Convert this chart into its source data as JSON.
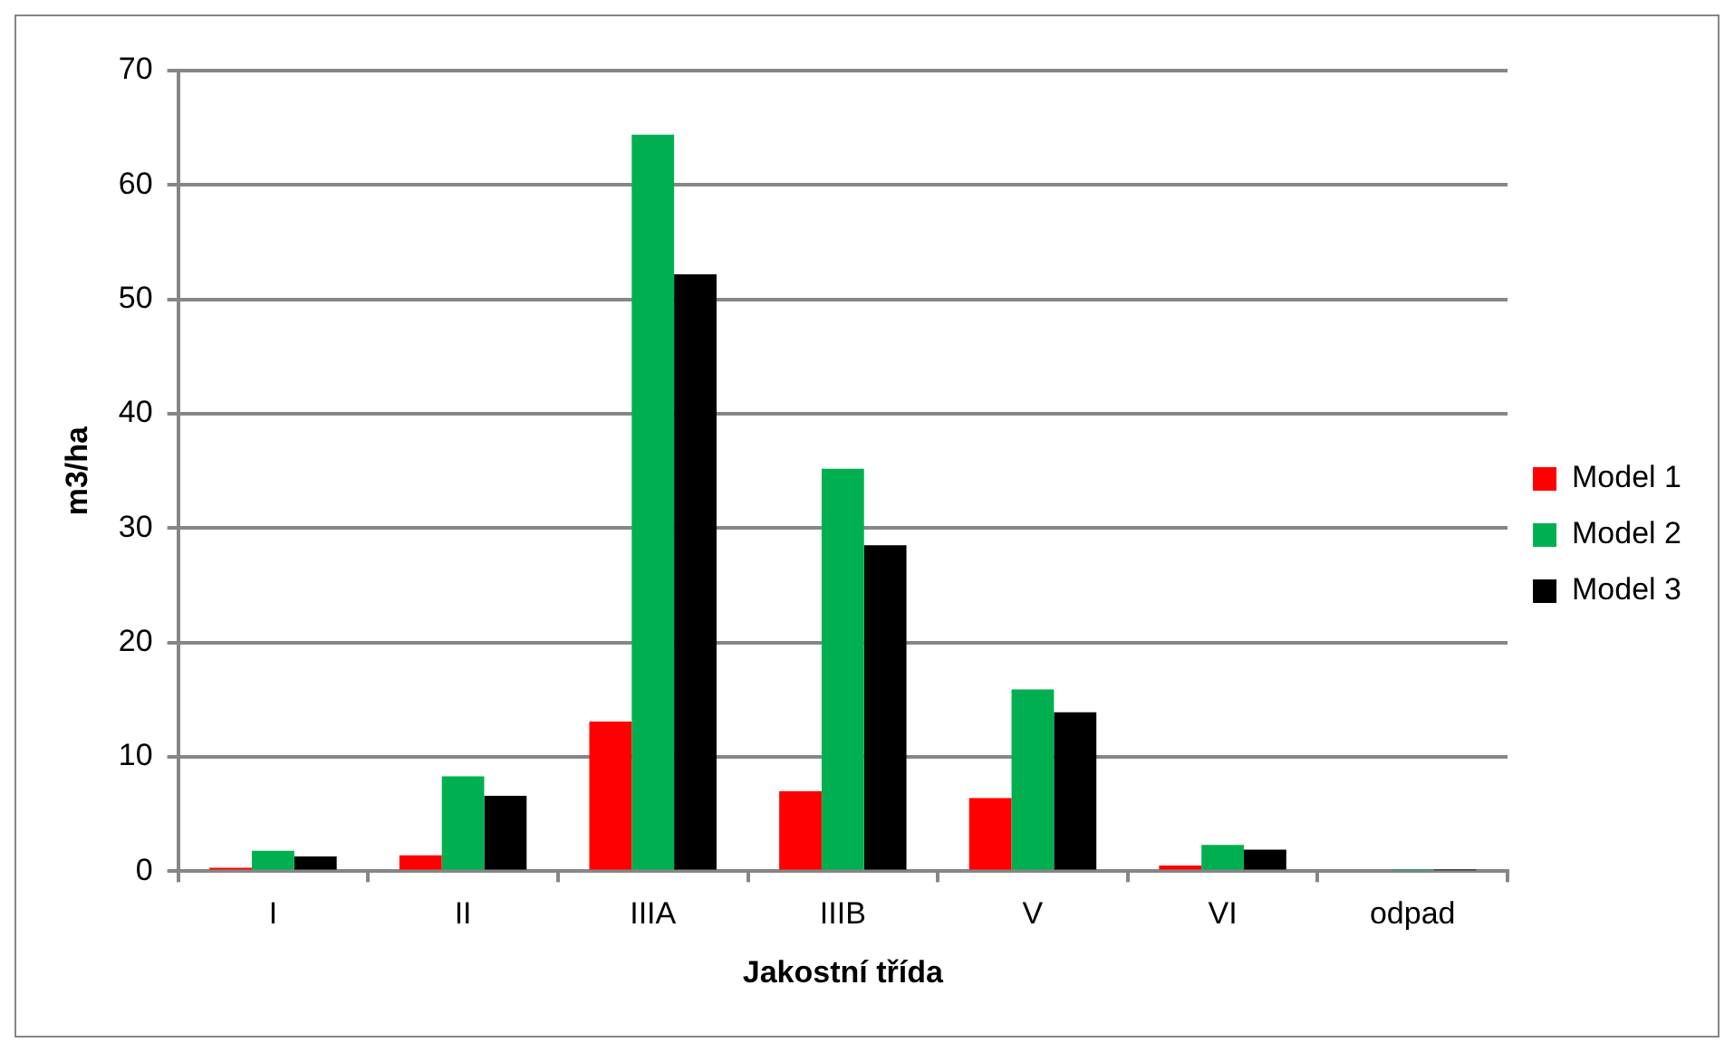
{
  "chart_data": {
    "type": "bar",
    "xlabel": "Jakostní třída",
    "ylabel": "m3/ha",
    "categories": [
      "I",
      "II",
      "IIIA",
      "IIIB",
      "V",
      "VI",
      "odpad"
    ],
    "series": [
      {
        "name": "Model 1",
        "color": "#ff0000",
        "values": [
          0.3,
          1.4,
          13.1,
          7.0,
          6.4,
          0.5,
          0
        ]
      },
      {
        "name": "Model 2",
        "color": "#00b050",
        "values": [
          1.8,
          8.3,
          64.4,
          35.2,
          15.9,
          2.3,
          0.1
        ]
      },
      {
        "name": "Model 3",
        "color": "#000000",
        "values": [
          1.3,
          6.6,
          52.2,
          28.5,
          13.9,
          1.9,
          0.1
        ]
      }
    ],
    "ylim": [
      0,
      70
    ],
    "yticks": [
      0,
      10,
      20,
      30,
      40,
      50,
      60,
      70
    ],
    "grid": "y",
    "legend": "right"
  }
}
